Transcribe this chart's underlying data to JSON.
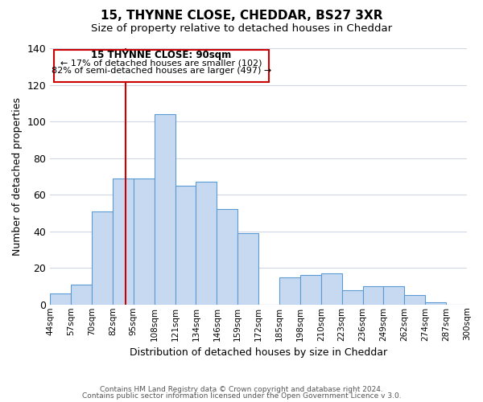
{
  "title1": "15, THYNNE CLOSE, CHEDDAR, BS27 3XR",
  "title2": "Size of property relative to detached houses in Cheddar",
  "xlabel": "Distribution of detached houses by size in Cheddar",
  "ylabel": "Number of detached properties",
  "footer1": "Contains HM Land Registry data © Crown copyright and database right 2024.",
  "footer2": "Contains public sector information licensed under the Open Government Licence v 3.0.",
  "bin_labels": [
    "44sqm",
    "57sqm",
    "70sqm",
    "82sqm",
    "95sqm",
    "108sqm",
    "121sqm",
    "134sqm",
    "146sqm",
    "159sqm",
    "172sqm",
    "185sqm",
    "198sqm",
    "210sqm",
    "223sqm",
    "236sqm",
    "249sqm",
    "262sqm",
    "274sqm",
    "287sqm",
    "300sqm"
  ],
  "bar_values": [
    6,
    11,
    51,
    69,
    69,
    104,
    65,
    67,
    52,
    39,
    0,
    15,
    16,
    17,
    8,
    10,
    10,
    5,
    1,
    0
  ],
  "bar_color": "#c6d9f0",
  "bar_edge_color": "#5b9bd5",
  "ylim": [
    0,
    140
  ],
  "yticks": [
    0,
    20,
    40,
    60,
    80,
    100,
    120,
    140
  ],
  "annotation_title": "15 THYNNE CLOSE: 90sqm",
  "annotation_line1": "← 17% of detached houses are smaller (102)",
  "annotation_line2": "82% of semi-detached houses are larger (497) →",
  "annotation_box_color": "#ffffff",
  "annotation_box_edge": "#cc0000",
  "vline_color": "#cc0000",
  "background_color": "#ffffff",
  "grid_color": "#d0d8e8"
}
